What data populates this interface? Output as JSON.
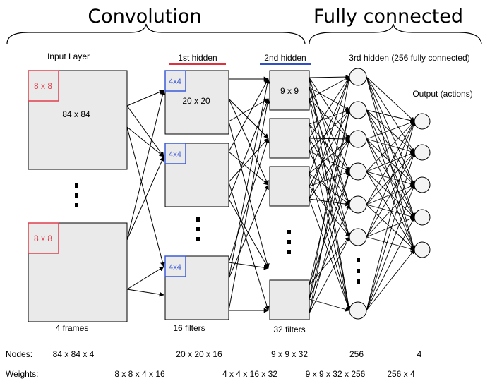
{
  "sections": {
    "convolution": "Convolution",
    "fully_connected": "Fully connected"
  },
  "layers": {
    "input": {
      "label": "Input Layer",
      "filter": "8 x 8",
      "size": "84 x 84",
      "count_label": "4 frames"
    },
    "hidden1": {
      "label": "1st hidden",
      "filter": "4x4",
      "size": "20 x 20",
      "count_label": "16 filters",
      "underline_color": "#e0303e"
    },
    "hidden2": {
      "label": "2nd hidden",
      "size": "9 x 9",
      "count_label": "32 filters",
      "underline_color": "#3050c8"
    },
    "hidden3": {
      "label": "3rd hidden (256 fully connected)"
    },
    "output": {
      "label": "Output (actions)"
    }
  },
  "colors": {
    "red_filter": "#e0404e",
    "blue_filter": "#3a5ad8",
    "box_fill": "#eaeaea"
  },
  "nodes_row": {
    "label": "Nodes:",
    "values": [
      "84 x 84 x 4",
      "20 x 20 x 16",
      "9 x 9 x 32",
      "256",
      "4"
    ]
  },
  "weights_row": {
    "label": "Weights:",
    "values": [
      "8 x 8 x 4 x 16",
      "4 x 4 x 16 x 32",
      "9 x 9 x 32 x 256",
      "256 x 4"
    ]
  }
}
